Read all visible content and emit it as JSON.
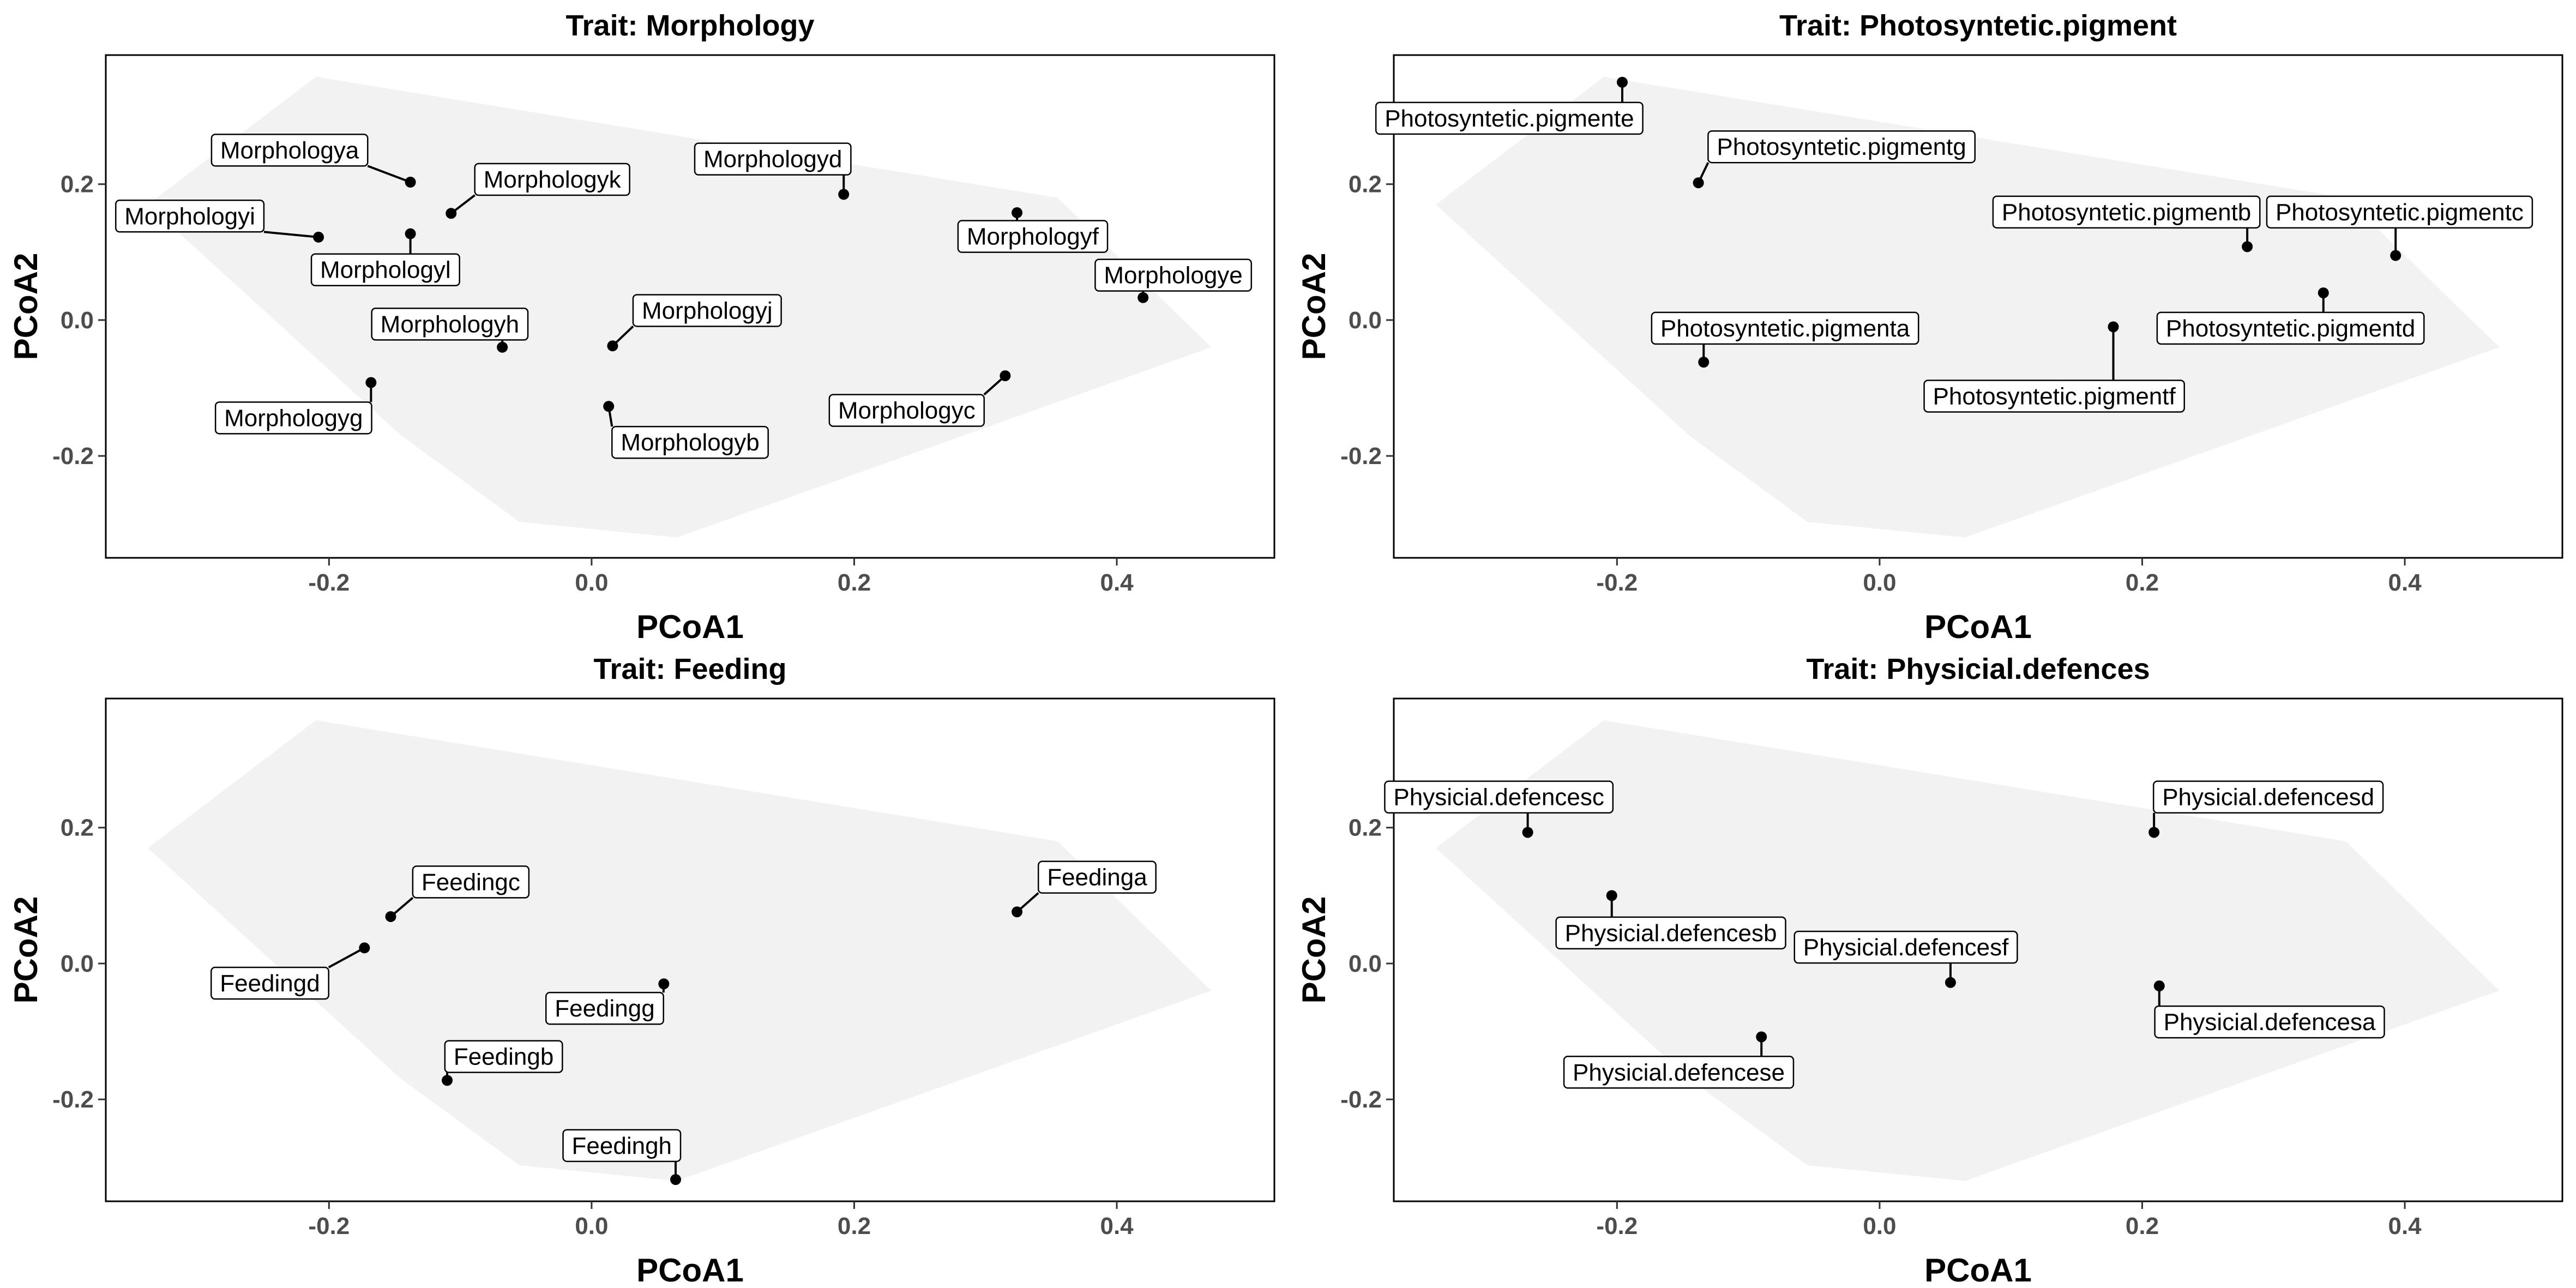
{
  "chart_data": [
    {
      "type": "scatter",
      "title": "Trait: Morphology",
      "xlabel": "PCoA1",
      "ylabel": "PCoA2",
      "xlim": [
        -0.37,
        0.52
      ],
      "ylim": [
        -0.35,
        0.39
      ],
      "xticks": [
        "-0.2",
        "0.0",
        "0.2",
        "0.4"
      ],
      "yticks": [
        "-0.2",
        "0.0",
        "0.2"
      ],
      "points": [
        {
          "label": "Morphologya",
          "x": -0.138,
          "y": 0.203,
          "lx": -0.23,
          "ly": 0.25
        },
        {
          "label": "Morphologyb",
          "x": 0.013,
          "y": -0.127,
          "lx": 0.075,
          "ly": -0.18
        },
        {
          "label": "Morphologyc",
          "x": 0.315,
          "y": -0.082,
          "lx": 0.24,
          "ly": -0.133
        },
        {
          "label": "Morphologyd",
          "x": 0.192,
          "y": 0.185,
          "lx": 0.138,
          "ly": 0.237
        },
        {
          "label": "Morphologye",
          "x": 0.42,
          "y": 0.033,
          "lx": 0.443,
          "ly": 0.066
        },
        {
          "label": "Morphologyf",
          "x": 0.324,
          "y": 0.158,
          "lx": 0.336,
          "ly": 0.123
        },
        {
          "label": "Morphologyg",
          "x": -0.168,
          "y": -0.092,
          "lx": -0.227,
          "ly": -0.144
        },
        {
          "label": "Morphologyh",
          "x": -0.068,
          "y": -0.04,
          "lx": -0.108,
          "ly": -0.006
        },
        {
          "label": "Morphologyi",
          "x": -0.208,
          "y": 0.122,
          "lx": -0.306,
          "ly": 0.153
        },
        {
          "label": "Morphologyj",
          "x": 0.016,
          "y": -0.038,
          "lx": 0.088,
          "ly": 0.014
        },
        {
          "label": "Morphologyk",
          "x": -0.107,
          "y": 0.157,
          "lx": -0.03,
          "ly": 0.207
        },
        {
          "label": "Morphologyl",
          "x": -0.138,
          "y": 0.127,
          "lx": -0.157,
          "ly": 0.074
        }
      ]
    },
    {
      "type": "scatter",
      "title": "Trait: Photosyntetic.pigment",
      "xlabel": "PCoA1",
      "ylabel": "PCoA2",
      "xlim": [
        -0.37,
        0.52
      ],
      "ylim": [
        -0.35,
        0.39
      ],
      "xticks": [
        "-0.2",
        "0.0",
        "0.2",
        "0.4"
      ],
      "yticks": [
        "-0.2",
        "0.0",
        "0.2"
      ],
      "points": [
        {
          "label": "Photosyntetic.pigmenta",
          "x": -0.134,
          "y": -0.062,
          "lx": -0.072,
          "ly": -0.012
        },
        {
          "label": "Photosyntetic.pigmentb",
          "x": 0.28,
          "y": 0.108,
          "lx": 0.188,
          "ly": 0.159
        },
        {
          "label": "Photosyntetic.pigmentc",
          "x": 0.393,
          "y": 0.095,
          "lx": 0.396,
          "ly": 0.159
        },
        {
          "label": "Photosyntetic.pigmentd",
          "x": 0.338,
          "y": 0.04,
          "lx": 0.313,
          "ly": -0.012
        },
        {
          "label": "Photosyntetic.pigmente",
          "x": -0.196,
          "y": 0.35,
          "lx": -0.282,
          "ly": 0.297
        },
        {
          "label": "Photosyntetic.pigmentf",
          "x": 0.178,
          "y": -0.01,
          "lx": 0.133,
          "ly": -0.112
        },
        {
          "label": "Photosyntetic.pigmentg",
          "x": -0.138,
          "y": 0.202,
          "lx": -0.029,
          "ly": 0.255
        }
      ]
    },
    {
      "type": "scatter",
      "title": "Trait: Feeding",
      "xlabel": "PCoA1",
      "ylabel": "PCoA2",
      "xlim": [
        -0.37,
        0.52
      ],
      "ylim": [
        -0.35,
        0.39
      ],
      "xticks": [
        "-0.2",
        "0.0",
        "0.2",
        "0.4"
      ],
      "yticks": [
        "-0.2",
        "0.0",
        "0.2"
      ],
      "points": [
        {
          "label": "Feedinga",
          "x": 0.324,
          "y": 0.076,
          "lx": 0.385,
          "ly": 0.127
        },
        {
          "label": "Feedingb",
          "x": -0.11,
          "y": -0.172,
          "lx": -0.067,
          "ly": -0.137
        },
        {
          "label": "Feedingc",
          "x": -0.153,
          "y": 0.069,
          "lx": -0.092,
          "ly": 0.12
        },
        {
          "label": "Feedingd",
          "x": -0.173,
          "y": 0.023,
          "lx": -0.245,
          "ly": -0.029
        },
        {
          "label": "Feedingg",
          "x": 0.055,
          "y": -0.03,
          "lx": 0.01,
          "ly": -0.066
        },
        {
          "label": "Feedingh",
          "x": 0.064,
          "y": -0.318,
          "lx": 0.023,
          "ly": -0.268
        }
      ]
    },
    {
      "type": "scatter",
      "title": "Trait: Physicial.defences",
      "xlabel": "PCoA1",
      "ylabel": "PCoA2",
      "xlim": [
        -0.37,
        0.52
      ],
      "ylim": [
        -0.35,
        0.39
      ],
      "xticks": [
        "-0.2",
        "0.0",
        "0.2",
        "0.4"
      ],
      "yticks": [
        "-0.2",
        "0.0",
        "0.2"
      ],
      "points": [
        {
          "label": "Physicial.defencesa",
          "x": 0.213,
          "y": -0.033,
          "lx": 0.297,
          "ly": -0.086
        },
        {
          "label": "Physicial.defencesb",
          "x": -0.204,
          "y": 0.1,
          "lx": -0.159,
          "ly": 0.045
        },
        {
          "label": "Physicial.defencesc",
          "x": -0.268,
          "y": 0.193,
          "lx": -0.29,
          "ly": 0.245
        },
        {
          "label": "Physicial.defencesd",
          "x": 0.209,
          "y": 0.193,
          "lx": 0.296,
          "ly": 0.245
        },
        {
          "label": "Physicial.defencese",
          "x": -0.09,
          "y": -0.108,
          "lx": -0.153,
          "ly": -0.16
        },
        {
          "label": "Physicial.defencesf",
          "x": 0.054,
          "y": -0.028,
          "lx": 0.02,
          "ly": 0.024
        }
      ]
    }
  ],
  "hull": [
    [
      -0.338,
      0.17
    ],
    [
      -0.21,
      0.358
    ],
    [
      0.355,
      0.18
    ],
    [
      0.472,
      -0.04
    ],
    [
      0.065,
      -0.32
    ],
    [
      -0.055,
      -0.297
    ],
    [
      -0.145,
      -0.17
    ]
  ],
  "colors": {
    "hull": "#f2f2f2",
    "point": "#000000",
    "tick_label": "#4d4d4d"
  }
}
